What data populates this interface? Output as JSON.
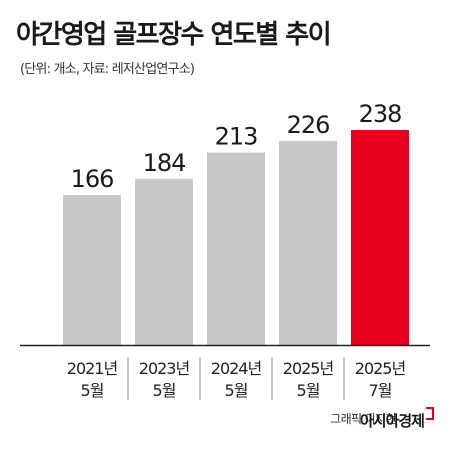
{
  "chart_data": {
    "type": "bar",
    "title": "야간영업 골프장수 연도별 추이",
    "subtitle": "(단위: 개소, 자료: 레저산업연구소)",
    "categories": [
      [
        "2021년",
        "5월"
      ],
      [
        "2023년",
        "5월"
      ],
      [
        "2024년",
        "5월"
      ],
      [
        "2025년",
        "5월"
      ],
      [
        "2025년",
        "7월"
      ]
    ],
    "values": [
      166,
      184,
      213,
      226,
      238
    ],
    "data_labels": [
      "166",
      "184",
      "213",
      "226",
      "238"
    ],
    "highlight_index": 4,
    "ylim": [
      0,
      238
    ],
    "grid": false,
    "legend": "none",
    "colors": {
      "bar": "#c8c8c8",
      "highlight": "#e6001e",
      "baseline": "#222222"
    }
  },
  "credit": "그래픽 이지현",
  "brand": "아시아경제"
}
